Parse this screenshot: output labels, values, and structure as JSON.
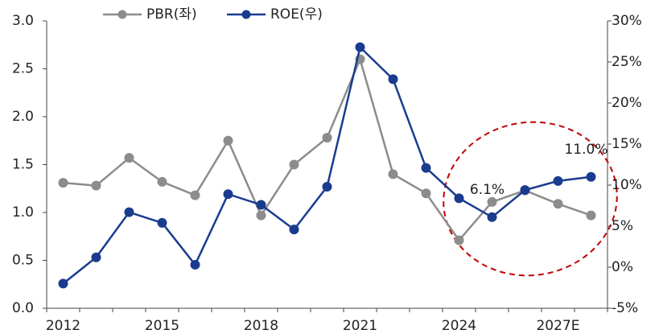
{
  "chart_data": {
    "type": "line",
    "categories": [
      "2012",
      null,
      null,
      "2015",
      null,
      null,
      "2018",
      null,
      null,
      "2021",
      null,
      null,
      "2024",
      null,
      null,
      "2027E",
      null
    ],
    "series": [
      {
        "name": "PBR(좌)",
        "color": "#8c8c8c",
        "axis": "y",
        "values": [
          1.31,
          1.28,
          1.57,
          1.32,
          1.18,
          1.75,
          0.97,
          1.5,
          1.78,
          2.6,
          1.4,
          1.2,
          0.71,
          1.11,
          1.23,
          1.09,
          0.97
        ]
      },
      {
        "name": "ROE(우)",
        "color": "#1a3c8f",
        "axis": "y2",
        "values": [
          -2.0,
          1.2,
          6.7,
          5.4,
          0.3,
          8.9,
          7.6,
          4.6,
          9.8,
          26.8,
          22.9,
          12.1,
          8.4,
          6.1,
          9.4,
          10.5,
          11.0
        ],
        "value_labels": [
          null,
          null,
          null,
          null,
          null,
          null,
          null,
          null,
          null,
          null,
          null,
          null,
          null,
          "6.1%",
          null,
          null,
          "11.0%"
        ]
      }
    ],
    "ylim": [
      0,
      3
    ],
    "yticks": [
      {
        "value": 0,
        "label": "0.0"
      },
      0.5,
      {
        "value": 1,
        "label": "1.0"
      },
      1.5,
      {
        "value": 2,
        "label": "2.0"
      },
      2.5,
      {
        "value": 3,
        "label": "3.0"
      }
    ],
    "y2lim": [
      -5,
      30
    ],
    "y2ticks": [
      {
        "value": -5,
        "label": "-5%"
      },
      {
        "value": 0,
        "label": "0%"
      },
      {
        "value": 5,
        "label": "5%"
      },
      {
        "value": 10,
        "label": "10%"
      },
      {
        "value": 15,
        "label": "15%"
      },
      {
        "value": 20,
        "label": "20%"
      },
      {
        "value": 25,
        "label": "25%"
      },
      {
        "value": 30,
        "label": "30%"
      }
    ],
    "grid": false,
    "legend": "top"
  }
}
